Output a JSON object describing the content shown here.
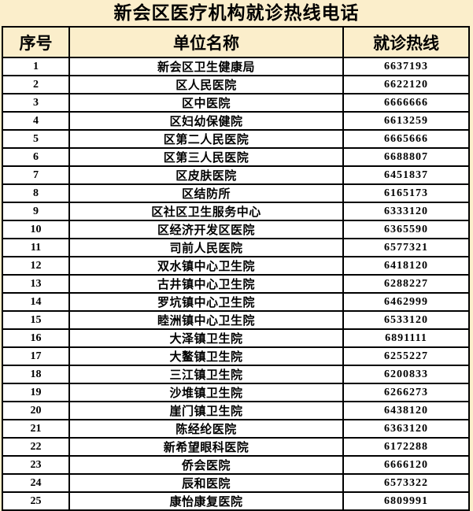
{
  "title": "新会区医疗机构就诊热线电话",
  "colors": {
    "page_background": "#fbeecb",
    "header_background": "#fbeecb",
    "row_background": "#ffffff",
    "border": "#000000",
    "text": "#000000"
  },
  "table": {
    "headers": [
      "序号",
      "单位名称",
      "就诊热线"
    ],
    "rows": [
      {
        "no": "1",
        "name": "新会区卫生健康局",
        "hotline": "6637193"
      },
      {
        "no": "2",
        "name": "区人民医院",
        "hotline": "6622120"
      },
      {
        "no": "3",
        "name": "区中医院",
        "hotline": "6666666"
      },
      {
        "no": "4",
        "name": "区妇幼保健院",
        "hotline": "6613259"
      },
      {
        "no": "5",
        "name": "区第二人民医院",
        "hotline": "6665666"
      },
      {
        "no": "6",
        "name": "区第三人民医院",
        "hotline": "6688807"
      },
      {
        "no": "7",
        "name": "区皮肤医院",
        "hotline": "6451837"
      },
      {
        "no": "8",
        "name": "区结防所",
        "hotline": "6165173"
      },
      {
        "no": "9",
        "name": "区社区卫生服务中心",
        "hotline": "6333120"
      },
      {
        "no": "10",
        "name": "区经济开发区医院",
        "hotline": "6365590"
      },
      {
        "no": "11",
        "name": "司前人民医院",
        "hotline": "6577321"
      },
      {
        "no": "12",
        "name": "双水镇中心卫生院",
        "hotline": "6418120"
      },
      {
        "no": "13",
        "name": "古井镇中心卫生院",
        "hotline": "6288227"
      },
      {
        "no": "14",
        "name": "罗坑镇中心卫生院",
        "hotline": "6462999"
      },
      {
        "no": "15",
        "name": "睦洲镇中心卫生院",
        "hotline": "6533120"
      },
      {
        "no": "16",
        "name": "大泽镇卫生院",
        "hotline": "6891111"
      },
      {
        "no": "17",
        "name": "大鳌镇卫生院",
        "hotline": "6255227"
      },
      {
        "no": "18",
        "name": "三江镇卫生院",
        "hotline": "6200833"
      },
      {
        "no": "19",
        "name": "沙堆镇卫生院",
        "hotline": "6266273"
      },
      {
        "no": "20",
        "name": "崖门镇卫生院",
        "hotline": "6438120"
      },
      {
        "no": "21",
        "name": "陈经纶医院",
        "hotline": "6363120"
      },
      {
        "no": "22",
        "name": "新希望眼科医院",
        "hotline": "6172288"
      },
      {
        "no": "23",
        "name": "侨会医院",
        "hotline": "6666120"
      },
      {
        "no": "24",
        "name": "辰和医院",
        "hotline": "6573322"
      },
      {
        "no": "25",
        "name": "康怡康复医院",
        "hotline": "6809991"
      }
    ]
  }
}
